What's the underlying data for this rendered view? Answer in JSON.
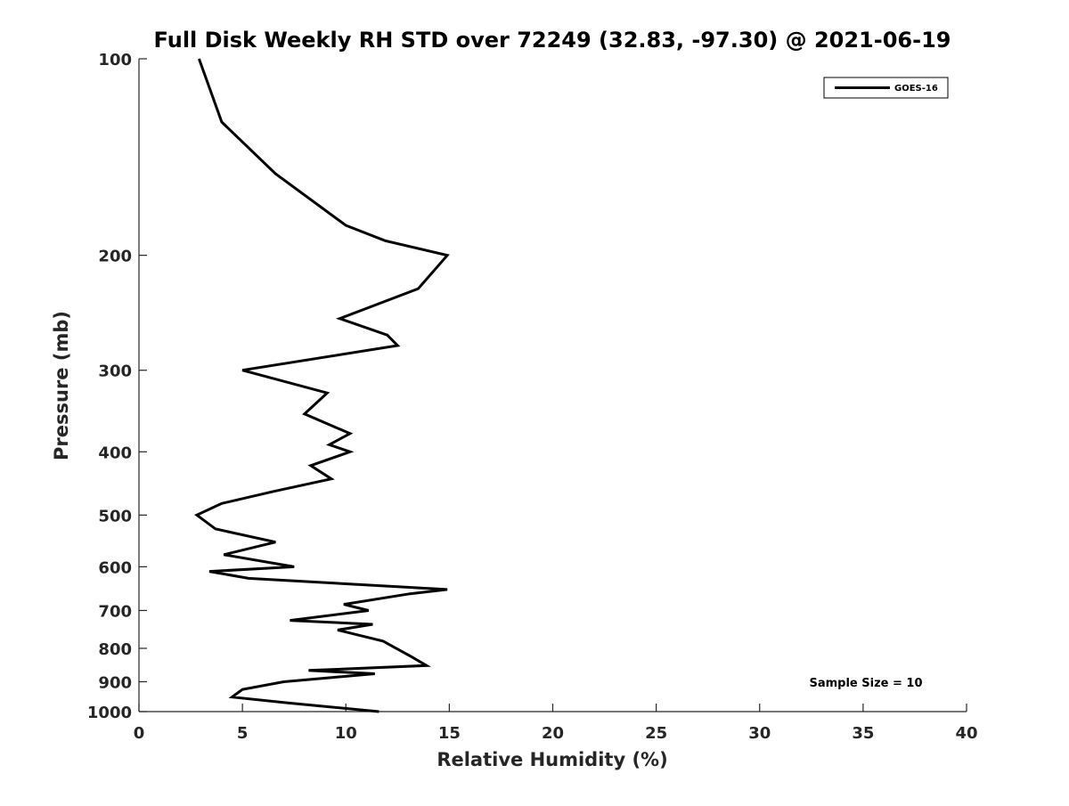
{
  "chart_data": {
    "type": "line",
    "title": "Full Disk Weekly RH STD over 72249 (32.83, -97.30) @ 2021-06-19",
    "xlabel": "Relative Humidity (%)",
    "ylabel": "Pressure (mb)",
    "xlim": [
      0,
      40
    ],
    "ylim": [
      100,
      1000
    ],
    "y_scale": "log",
    "y_reversed": true,
    "grid": false,
    "x_ticks": [
      "0",
      "5",
      "10",
      "15",
      "20",
      "25",
      "30",
      "35",
      "40"
    ],
    "y_ticks": [
      "100",
      "200",
      "300",
      "400",
      "500",
      "600",
      "700",
      "800",
      "900",
      "1000"
    ],
    "legend_position": "top-right",
    "annotation": "Sample Size = 10",
    "series": [
      {
        "name": "GOES-16",
        "color": "#000000",
        "points": [
          [
            2.9,
            100
          ],
          [
            4.0,
            125
          ],
          [
            6.6,
            150
          ],
          [
            10.0,
            180
          ],
          [
            11.9,
            190
          ],
          [
            14.9,
            200
          ],
          [
            13.5,
            225
          ],
          [
            9.7,
            250
          ],
          [
            12.0,
            265
          ],
          [
            12.5,
            275
          ],
          [
            5.0,
            300
          ],
          [
            9.1,
            325
          ],
          [
            8.0,
            350
          ],
          [
            10.2,
            375
          ],
          [
            9.2,
            390
          ],
          [
            10.2,
            400
          ],
          [
            8.3,
            420
          ],
          [
            9.3,
            440
          ],
          [
            6.5,
            460
          ],
          [
            4.0,
            480
          ],
          [
            2.8,
            500
          ],
          [
            3.7,
            525
          ],
          [
            6.6,
            550
          ],
          [
            4.1,
            575
          ],
          [
            7.5,
            600
          ],
          [
            3.4,
            610
          ],
          [
            5.3,
            625
          ],
          [
            14.9,
            650
          ],
          [
            13.1,
            660
          ],
          [
            9.9,
            685
          ],
          [
            11.1,
            700
          ],
          [
            7.3,
            725
          ],
          [
            11.3,
            735
          ],
          [
            9.6,
            750
          ],
          [
            11.8,
            780
          ],
          [
            13.2,
            825
          ],
          [
            13.9,
            850
          ],
          [
            8.2,
            865
          ],
          [
            11.4,
            875
          ],
          [
            7.0,
            900
          ],
          [
            5.0,
            925
          ],
          [
            4.5,
            950
          ],
          [
            7.2,
            970
          ],
          [
            11.6,
            1000
          ]
        ]
      }
    ]
  }
}
